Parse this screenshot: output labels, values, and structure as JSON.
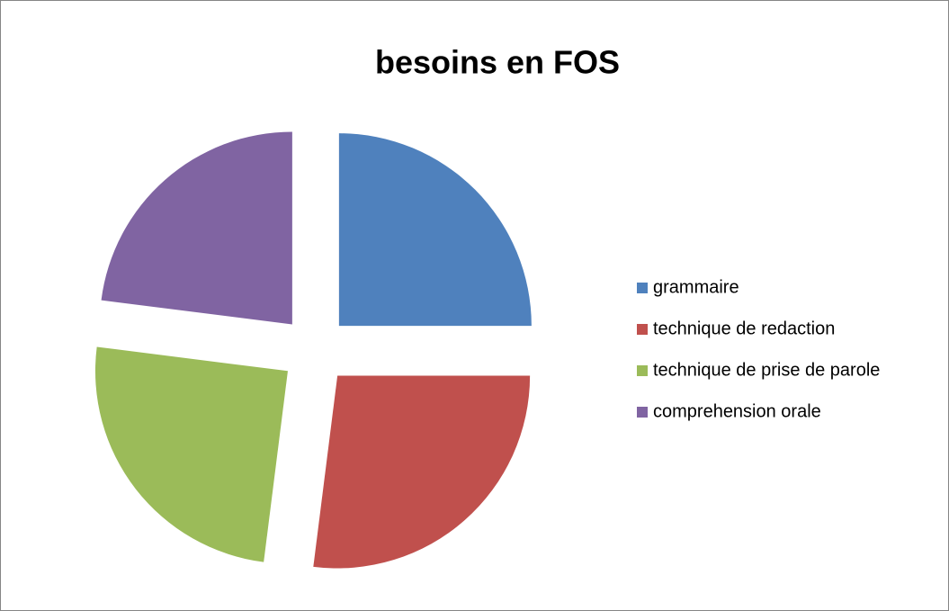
{
  "chart_data": {
    "type": "pie",
    "title": "besoins en FOS",
    "categories": [
      "grammaire",
      "technique de redaction",
      "technique de prise de parole",
      "comprehension orale"
    ],
    "values": [
      25,
      27,
      25,
      23
    ],
    "colors": [
      "#4f81bd",
      "#c0504d",
      "#9bbb59",
      "#8064a2"
    ],
    "legend": "right",
    "exploded": true
  }
}
